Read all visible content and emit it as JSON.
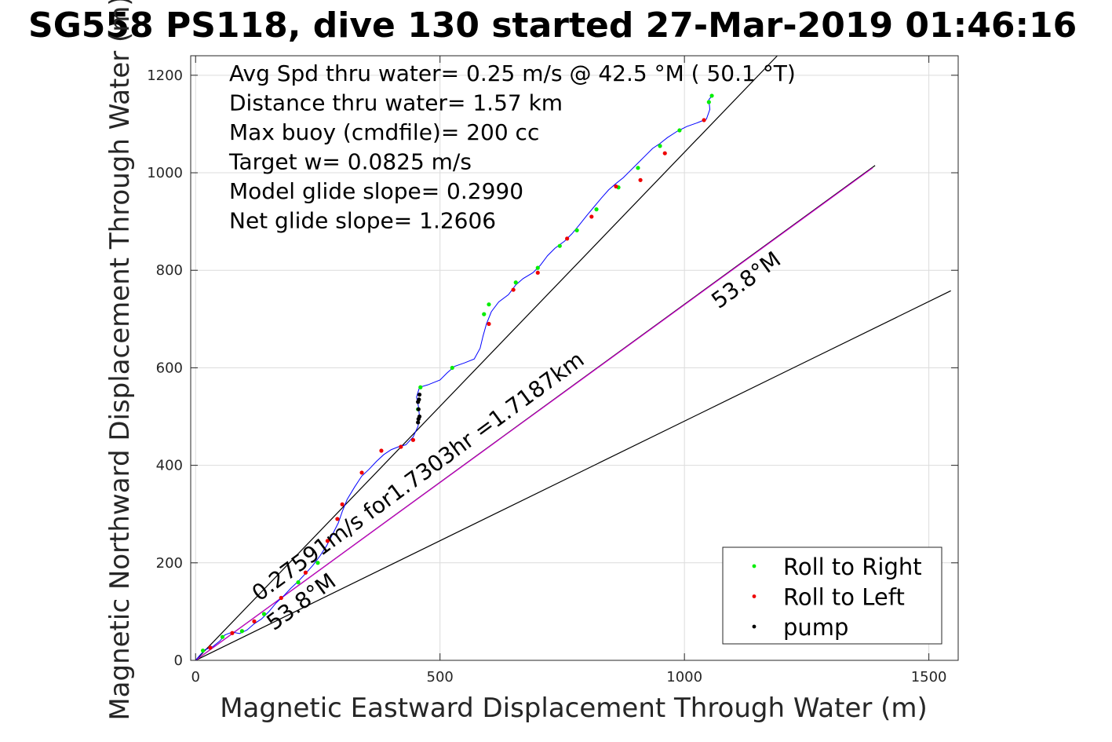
{
  "chart_data": {
    "type": "line",
    "title": "SG558 PS118, dive 130 started 27-Mar-2019 01:46:16",
    "xlabel": "Magnetic Eastward Displacement Through Water (m)",
    "ylabel": "Magnetic Northward Displacement Through Water (m)",
    "xlim": [
      -10,
      1560
    ],
    "ylim": [
      0,
      1240
    ],
    "xticks": [
      0,
      500,
      1000,
      1500
    ],
    "yticks": [
      0,
      200,
      400,
      600,
      800,
      1000,
      1200
    ],
    "grid": true,
    "info_lines": [
      "Avg Spd thru water=  0.25 m/s @  42.5 °M ( 50.1 °T)",
      "Distance thru water=  1.57 km",
      "Max buoy (cmdfile)= 200 cc",
      "Target w= 0.0825 m/s",
      "Model glide slope= 0.2990",
      "Net glide slope= 1.2606"
    ],
    "annotations": [
      {
        "text": "0.27591m/s for1.7303hr =1.7187km",
        "x": 130,
        "y": 120,
        "angle_deg": 36.2
      },
      {
        "text": "53.8°M",
        "x": 1070,
        "y": 720,
        "angle_deg": 36.2
      },
      {
        "text": "53.8°M",
        "x": 160,
        "y": 60,
        "angle_deg": 36.2
      }
    ],
    "reference_lines": [
      {
        "name": "upper bound",
        "color": "#000000",
        "points": [
          [
            0,
            0
          ],
          [
            1190,
            1240
          ]
        ]
      },
      {
        "name": "lower bound",
        "color": "#000000",
        "points": [
          [
            0,
            0
          ],
          [
            1545,
            758
          ]
        ]
      },
      {
        "name": "heading line",
        "color": "#000000",
        "points": [
          [
            0,
            0
          ],
          [
            1390,
            1015
          ]
        ]
      },
      {
        "name": "current line",
        "color": "#cc00cc",
        "points": [
          [
            0,
            0
          ],
          [
            1385,
            1010
          ]
        ]
      }
    ],
    "track": {
      "color": "#0000ff",
      "points": [
        [
          0,
          0
        ],
        [
          10,
          12
        ],
        [
          20,
          22
        ],
        [
          35,
          28
        ],
        [
          50,
          40
        ],
        [
          60,
          52
        ],
        [
          75,
          58
        ],
        [
          90,
          55
        ],
        [
          105,
          62
        ],
        [
          120,
          75
        ],
        [
          135,
          85
        ],
        [
          150,
          100
        ],
        [
          165,
          118
        ],
        [
          180,
          132
        ],
        [
          195,
          148
        ],
        [
          210,
          162
        ],
        [
          225,
          178
        ],
        [
          240,
          195
        ],
        [
          255,
          215
        ],
        [
          268,
          235
        ],
        [
          280,
          258
        ],
        [
          292,
          282
        ],
        [
          300,
          305
        ],
        [
          310,
          330
        ],
        [
          325,
          355
        ],
        [
          340,
          378
        ],
        [
          355,
          392
        ],
        [
          370,
          408
        ],
        [
          385,
          422
        ],
        [
          400,
          432
        ],
        [
          415,
          438
        ],
        [
          430,
          442
        ],
        [
          445,
          458
        ],
        [
          455,
          480
        ],
        [
          458,
          500
        ],
        [
          456,
          520
        ],
        [
          452,
          540
        ],
        [
          458,
          560
        ],
        [
          475,
          565
        ],
        [
          500,
          575
        ],
        [
          515,
          590
        ],
        [
          530,
          603
        ],
        [
          550,
          610
        ],
        [
          570,
          618
        ],
        [
          582,
          640
        ],
        [
          588,
          665
        ],
        [
          595,
          690
        ],
        [
          605,
          715
        ],
        [
          620,
          735
        ],
        [
          640,
          750
        ],
        [
          655,
          770
        ],
        [
          670,
          783
        ],
        [
          690,
          795
        ],
        [
          705,
          810
        ],
        [
          720,
          830
        ],
        [
          735,
          845
        ],
        [
          755,
          860
        ],
        [
          770,
          875
        ],
        [
          785,
          893
        ],
        [
          800,
          912
        ],
        [
          815,
          930
        ],
        [
          830,
          948
        ],
        [
          845,
          965
        ],
        [
          860,
          978
        ],
        [
          875,
          990
        ],
        [
          890,
          1005
        ],
        [
          905,
          1020
        ],
        [
          920,
          1035
        ],
        [
          935,
          1050
        ],
        [
          950,
          1060
        ],
        [
          965,
          1072
        ],
        [
          985,
          1085
        ],
        [
          1005,
          1095
        ],
        [
          1025,
          1102
        ],
        [
          1045,
          1110
        ],
        [
          1052,
          1130
        ],
        [
          1050,
          1150
        ],
        [
          1058,
          1160
        ]
      ]
    },
    "series": [
      {
        "name": "Roll to Right",
        "color": "#00ee00",
        "marker": "dot",
        "points": [
          [
            15,
            20
          ],
          [
            55,
            48
          ],
          [
            95,
            60
          ],
          [
            140,
            95
          ],
          [
            210,
            160
          ],
          [
            250,
            200
          ],
          [
            455,
            515
          ],
          [
            460,
            560
          ],
          [
            525,
            600
          ],
          [
            590,
            710
          ],
          [
            600,
            730
          ],
          [
            655,
            775
          ],
          [
            700,
            805
          ],
          [
            745,
            850
          ],
          [
            780,
            882
          ],
          [
            820,
            925
          ],
          [
            865,
            970
          ],
          [
            905,
            1010
          ],
          [
            950,
            1055
          ],
          [
            990,
            1087
          ],
          [
            1050,
            1145
          ],
          [
            1056,
            1158
          ]
        ]
      },
      {
        "name": "Roll to Left",
        "color": "#ee0000",
        "marker": "dot",
        "points": [
          [
            30,
            26
          ],
          [
            75,
            56
          ],
          [
            120,
            80
          ],
          [
            175,
            128
          ],
          [
            225,
            180
          ],
          [
            270,
            245
          ],
          [
            290,
            290
          ],
          [
            300,
            320
          ],
          [
            340,
            385
          ],
          [
            380,
            430
          ],
          [
            420,
            438
          ],
          [
            445,
            452
          ],
          [
            600,
            690
          ],
          [
            650,
            760
          ],
          [
            700,
            795
          ],
          [
            760,
            865
          ],
          [
            810,
            910
          ],
          [
            860,
            972
          ],
          [
            910,
            985
          ],
          [
            960,
            1040
          ],
          [
            1040,
            1108
          ]
        ]
      },
      {
        "name": "pump",
        "color": "#000000",
        "marker": "dot",
        "points": [
          [
            455,
            488
          ],
          [
            458,
            500
          ],
          [
            456,
            515
          ],
          [
            455,
            530
          ],
          [
            458,
            545
          ],
          [
            457,
            535
          ],
          [
            456,
            495
          ]
        ]
      }
    ],
    "legend": {
      "placement": "bottom-right",
      "entries": [
        "Roll to Right",
        "Roll to Left",
        "pump"
      ]
    }
  }
}
